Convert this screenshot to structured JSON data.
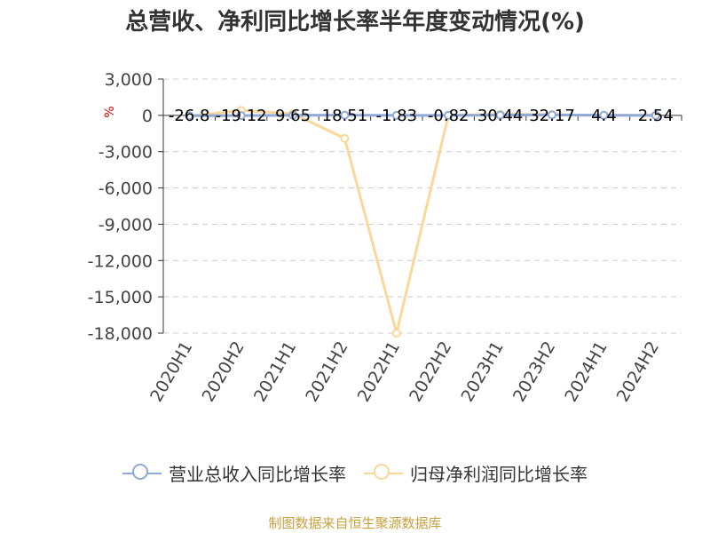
{
  "chart_data": {
    "type": "line",
    "title": "总营收、净利同比增长率半年度变动情况(%)",
    "unit_label": "%",
    "categories": [
      "2020H1",
      "2020H2",
      "2021H1",
      "2021H2",
      "2022H1",
      "2022H2",
      "2023H1",
      "2023H2",
      "2024H1",
      "2024H2"
    ],
    "ylim": [
      -18000,
      3000
    ],
    "yticks": [
      3000,
      0,
      -3000,
      -6000,
      -9000,
      -12000,
      -15000,
      -18000
    ],
    "ytick_labels": [
      "3,000",
      "0",
      "-3,000",
      "-6,000",
      "-9,000",
      "-12,000",
      "-15,000",
      "-18,000"
    ],
    "grid": true,
    "legend_position": "bottom",
    "series": [
      {
        "name": "营业总收入同比增长率",
        "color": "#8fa9d8",
        "values": [
          -26.8,
          -19.12,
          9.65,
          18.51,
          -1.83,
          -0.82,
          30.44,
          32.17,
          4.4,
          2.54
        ],
        "labels": [
          "-26.8",
          "-19.12",
          "9.65",
          "18.51",
          "-1.83",
          "-0.82",
          "30.44",
          "32.17",
          "4.4",
          "2.54"
        ]
      },
      {
        "name": "归母净利润同比增长率",
        "color": "#fad89a",
        "values": [
          -60,
          400,
          150,
          -1900,
          -18000,
          0,
          80,
          60,
          10,
          5
        ]
      }
    ]
  },
  "source_text": "制图数据来自恒生聚源数据库"
}
